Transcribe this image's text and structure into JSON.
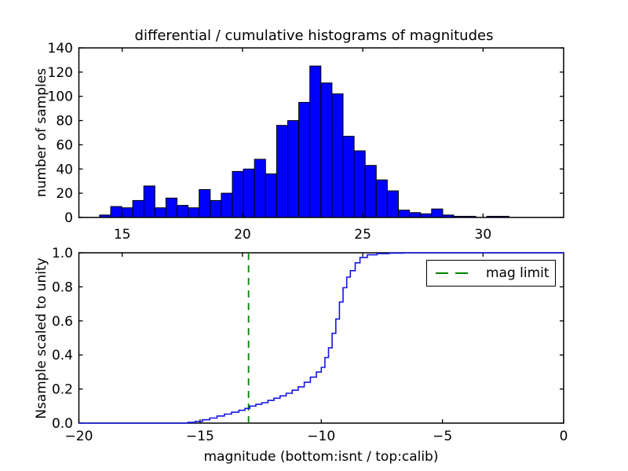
{
  "figure": {
    "title": "differential / cumulative histograms of magnitudes",
    "background": "#ffffff",
    "text_color": "#000000"
  },
  "chart_data": [
    {
      "type": "bar",
      "title": "differential / cumulative histograms of magnitudes",
      "ylabel": "number of samples",
      "xlabel": "",
      "xlim": [
        13.2,
        33.35
      ],
      "ylim": [
        0,
        140
      ],
      "xticks": [
        15,
        20,
        25,
        30
      ],
      "xtick_labels": [
        "15",
        "20",
        "25",
        "30"
      ],
      "yticks": [
        0,
        20,
        40,
        60,
        80,
        100,
        120,
        140
      ],
      "ytick_labels": [
        "0",
        "20",
        "40",
        "60",
        "80",
        "100",
        "120",
        "140"
      ],
      "grid": false,
      "bar_color": "#0000ff",
      "bar_edge_color": "#000000",
      "bin_start": 14.06,
      "bin_width": 0.46,
      "values": [
        2,
        9,
        8,
        14,
        26,
        8,
        16,
        10,
        8,
        23,
        14,
        20,
        38,
        40,
        48,
        36,
        76,
        80,
        95,
        125,
        111,
        102,
        67,
        55,
        43,
        31,
        22,
        6,
        4,
        3,
        7,
        2,
        1,
        1,
        0,
        1,
        1,
        0,
        0,
        0,
        0,
        0
      ]
    },
    {
      "type": "line",
      "step": true,
      "ylabel": "Nsample scaled to unity",
      "xlabel": "magnitude (bottom:isnt / top:calib)",
      "xlim": [
        -20,
        0
      ],
      "ylim": [
        0,
        1
      ],
      "xticks": [
        -20,
        -15,
        -10,
        -5,
        0
      ],
      "xtick_labels": [
        "−20",
        "−15",
        "−10",
        "−5",
        "0"
      ],
      "yticks": [
        0,
        0.2,
        0.4,
        0.6,
        0.8,
        1.0
      ],
      "ytick_labels": [
        "0.0",
        "0.2",
        "0.4",
        "0.6",
        "0.8",
        "1.0"
      ],
      "top_frame_ticks_calib": [
        15,
        20,
        25,
        30
      ],
      "grid": false,
      "line_color": "#1414e6",
      "start_y": 0,
      "points": [
        [
          -15.5,
          0.004
        ],
        [
          -15.2,
          0.01
        ],
        [
          -14.9,
          0.02
        ],
        [
          -14.6,
          0.03
        ],
        [
          -14.3,
          0.042
        ],
        [
          -14.0,
          0.053
        ],
        [
          -13.7,
          0.064
        ],
        [
          -13.4,
          0.075
        ],
        [
          -13.15,
          0.086
        ],
        [
          -12.95,
          0.1
        ],
        [
          -12.7,
          0.11
        ],
        [
          -12.45,
          0.12
        ],
        [
          -12.2,
          0.133
        ],
        [
          -11.95,
          0.146
        ],
        [
          -11.7,
          0.16
        ],
        [
          -11.45,
          0.175
        ],
        [
          -11.2,
          0.193
        ],
        [
          -10.95,
          0.213
        ],
        [
          -10.7,
          0.24
        ],
        [
          -10.45,
          0.27
        ],
        [
          -10.2,
          0.3
        ],
        [
          -10.0,
          0.327
        ],
        [
          -9.85,
          0.385
        ],
        [
          -9.7,
          0.442
        ],
        [
          -9.55,
          0.527
        ],
        [
          -9.4,
          0.611
        ],
        [
          -9.25,
          0.711
        ],
        [
          -9.1,
          0.795
        ],
        [
          -8.95,
          0.857
        ],
        [
          -8.8,
          0.895
        ],
        [
          -8.6,
          0.941
        ],
        [
          -8.4,
          0.972
        ],
        [
          -8.1,
          0.988
        ],
        [
          -7.7,
          0.995
        ],
        [
          -7.2,
          0.998
        ],
        [
          -6.6,
          1.0
        ]
      ],
      "vline": {
        "x": -13,
        "color": "#008200",
        "style": "dashed",
        "label": "mag limit"
      },
      "legend": {
        "label": "mag limit",
        "position": "upper right",
        "line_color": "#008200"
      }
    }
  ]
}
